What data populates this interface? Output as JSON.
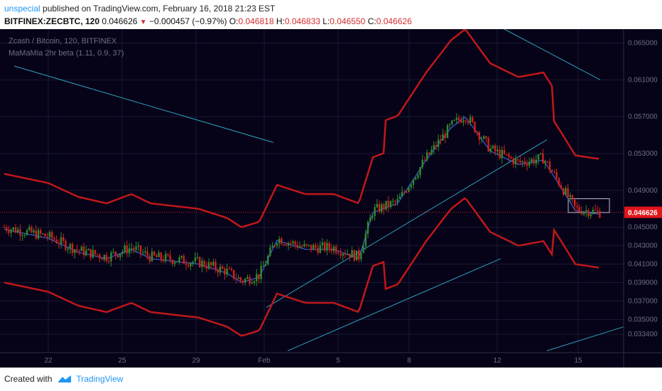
{
  "header": {
    "author": "unspecial",
    "published_text": " published on TradingView.com, February 16, 2018 21:23 EST"
  },
  "quote": {
    "symbol": "BITFINEX:ZECBTC, 120",
    "last": "0.046626",
    "change": "−0.000457 (−0.97%)",
    "o_label": "O:",
    "o_value": "0.046818",
    "h_label": "H:",
    "h_value": "0.046833",
    "l_label": "L:",
    "l_value": "0.046550",
    "c_label": "C:",
    "c_value": "0.046626"
  },
  "footer": {
    "created_with": "Created with",
    "brand": "TradingView"
  },
  "colors": {
    "background": "#060318",
    "grid": "#161a33",
    "upper_band": "#c0171a",
    "lower_band_green": "#1e7b1e",
    "candle_up": "#2e8b2e",
    "candle_down": "#d0211a",
    "ma_line": "#3d5fd8",
    "trend_line": "#2f9fb8",
    "price_tag": "#e0161b"
  },
  "chart_data": {
    "type": "candlestick",
    "title": "Zcash / Bitcoin, 120, BITFINEX",
    "indicator": "MaMaMia 2hr beta (1.11, 0.9, 37)",
    "x_ticks": [
      "22",
      "25",
      "29",
      "Feb",
      "5",
      "8",
      "12",
      "15"
    ],
    "y_ticks": [
      "0.065000",
      "0.061000",
      "0.057000",
      "0.053000",
      "0.049000",
      "0.045000",
      "0.043000",
      "0.041000",
      "0.039000",
      "0.037000",
      "0.035000",
      "0.033400"
    ],
    "last_price": "0.046626",
    "ylim": [
      0.0314,
      0.0665
    ],
    "grid": true,
    "candle_anchors": [
      {
        "day": "22",
        "price": 0.0444
      },
      {
        "day": "25",
        "price": 0.042
      },
      {
        "day": "29",
        "price": 0.0404
      },
      {
        "day": "Feb",
        "price": 0.0398
      },
      {
        "day": "5",
        "price": 0.043
      },
      {
        "day": "8",
        "price": 0.05
      },
      {
        "day": "12",
        "price": 0.053
      },
      {
        "day": "15",
        "price": 0.048
      },
      {
        "day": "end",
        "price": 0.046626
      }
    ]
  }
}
